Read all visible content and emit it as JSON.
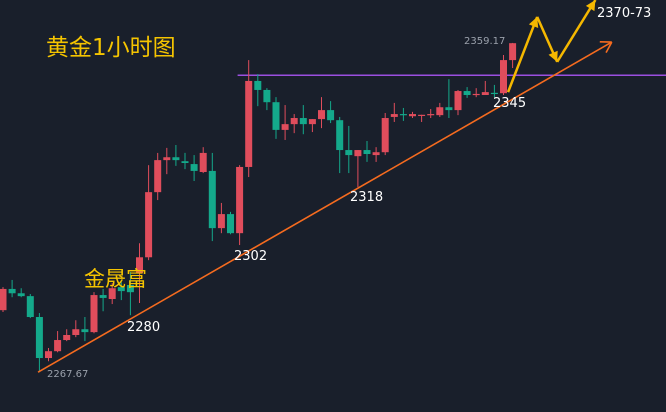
{
  "chart_data": {
    "type": "candlestick",
    "title": "黄金1小时图",
    "watermark": "金晟富",
    "ylim": [
      2256.6,
      2371.1
    ],
    "colors": {
      "up": "#e04d5c",
      "down": "#14a98b",
      "background": "#191f2b",
      "trendline": "#f56b1f",
      "resistance": "#9b4fe0",
      "projection": "#f5b800"
    },
    "candles": [
      [
        2284.9,
        2291.3,
        2284.4,
        2290.8
      ],
      [
        2290.8,
        2293.3,
        2288.5,
        2289.6
      ],
      [
        2289.6,
        2291.0,
        2288.5,
        2288.8
      ],
      [
        2288.8,
        2289.4,
        2282.7,
        2283.0
      ],
      [
        2283.0,
        2284.1,
        2267.67,
        2271.6
      ],
      [
        2271.6,
        2274.4,
        2270.7,
        2273.5
      ],
      [
        2273.5,
        2279.1,
        2273.2,
        2276.6
      ],
      [
        2276.6,
        2279.6,
        2276.3,
        2278.0
      ],
      [
        2278.0,
        2282.1,
        2277.4,
        2279.6
      ],
      [
        2279.6,
        2283.0,
        2276.3,
        2278.8
      ],
      [
        2278.8,
        2289.9,
        2278.5,
        2289.1
      ],
      [
        2289.1,
        2290.8,
        2284.6,
        2288.3
      ],
      [
        2288.0,
        2292.4,
        2286.6,
        2291.0
      ],
      [
        2291.3,
        2292.7,
        2287.7,
        2290.2
      ],
      [
        2291.9,
        2295.5,
        2283.5,
        2289.9
      ],
      [
        2295.2,
        2303.5,
        2286.9,
        2299.6
      ],
      [
        2299.6,
        2325.2,
        2298.8,
        2317.7
      ],
      [
        2317.7,
        2328.6,
        2315.5,
        2326.6
      ],
      [
        2326.6,
        2330.0,
        2322.7,
        2327.4
      ],
      [
        2327.4,
        2330.8,
        2325.0,
        2326.6
      ],
      [
        2326.3,
        2328.6,
        2324.1,
        2325.8
      ],
      [
        2325.5,
        2328.0,
        2320.8,
        2323.6
      ],
      [
        2323.3,
        2330.2,
        2323.0,
        2328.6
      ],
      [
        2323.6,
        2328.6,
        2304.1,
        2307.7
      ],
      [
        2307.7,
        2314.7,
        2306.3,
        2311.6
      ],
      [
        2311.6,
        2312.2,
        2306.0,
        2306.3
      ],
      [
        2306.3,
        2325.2,
        2303.0,
        2324.7
      ],
      [
        2324.7,
        2354.4,
        2321.9,
        2348.6
      ],
      [
        2348.6,
        2350.5,
        2341.6,
        2346.1
      ],
      [
        2346.1,
        2346.6,
        2340.5,
        2342.7
      ],
      [
        2342.7,
        2344.1,
        2332.5,
        2335.0
      ],
      [
        2335.0,
        2341.9,
        2332.2,
        2336.6
      ],
      [
        2336.6,
        2339.4,
        2334.1,
        2338.3
      ],
      [
        2338.3,
        2341.9,
        2333.8,
        2336.6
      ],
      [
        2336.6,
        2338.0,
        2334.4,
        2338.0
      ],
      [
        2338.0,
        2344.1,
        2335.5,
        2340.5
      ],
      [
        2340.5,
        2343.0,
        2336.9,
        2337.7
      ],
      [
        2337.7,
        2338.6,
        2323.0,
        2329.4
      ],
      [
        2329.4,
        2336.1,
        2323.0,
        2328.0
      ],
      [
        2327.7,
        2329.4,
        2319.1,
        2329.4
      ],
      [
        2329.4,
        2331.9,
        2326.1,
        2328.3
      ],
      [
        2328.0,
        2330.2,
        2326.1,
        2328.8
      ],
      [
        2328.8,
        2339.7,
        2328.0,
        2338.3
      ],
      [
        2338.6,
        2342.5,
        2337.2,
        2339.4
      ],
      [
        2339.4,
        2341.1,
        2337.5,
        2339.1
      ],
      [
        2338.8,
        2340.0,
        2338.3,
        2339.4
      ],
      [
        2339.1,
        2339.2,
        2337.2,
        2339.2
      ],
      [
        2339.3,
        2340.8,
        2338.3,
        2339.4
      ],
      [
        2339.1,
        2342.5,
        2338.6,
        2341.3
      ],
      [
        2341.3,
        2349.1,
        2338.3,
        2340.5
      ],
      [
        2340.5,
        2346.1,
        2339.1,
        2345.8
      ],
      [
        2345.8,
        2346.9,
        2343.9,
        2344.7
      ],
      [
        2344.9,
        2346.6,
        2344.1,
        2345.0
      ],
      [
        2344.7,
        2348.6,
        2344.7,
        2345.5
      ],
      [
        2345.3,
        2347.5,
        2344.1,
        2345.0
      ],
      [
        2345.2,
        2355.8,
        2344.7,
        2354.4
      ],
      [
        2354.4,
        2359.17,
        2352.2,
        2359.1
      ]
    ],
    "candle_fields": [
      "open",
      "high",
      "low",
      "close"
    ],
    "resistance_line": {
      "price": 2350.2,
      "from_index": 26
    },
    "trendline": {
      "from": {
        "index": 3.85,
        "price": 2267.67
      },
      "to": {
        "index": 66.9,
        "price": 2359.4
      }
    },
    "projection_path": [
      {
        "index": 55.5,
        "price": 2345.5
      },
      {
        "index": 58.7,
        "price": 2366.4
      },
      {
        "index": 60.9,
        "price": 2353.9
      },
      {
        "index": 65.1,
        "price": 2371.1
      }
    ],
    "annotations": {
      "low": "2267.67",
      "high": "2359.17",
      "l2280": "2280",
      "l2302": "2302",
      "l2318": "2318",
      "l2345": "2345",
      "target": "2370-73"
    }
  }
}
